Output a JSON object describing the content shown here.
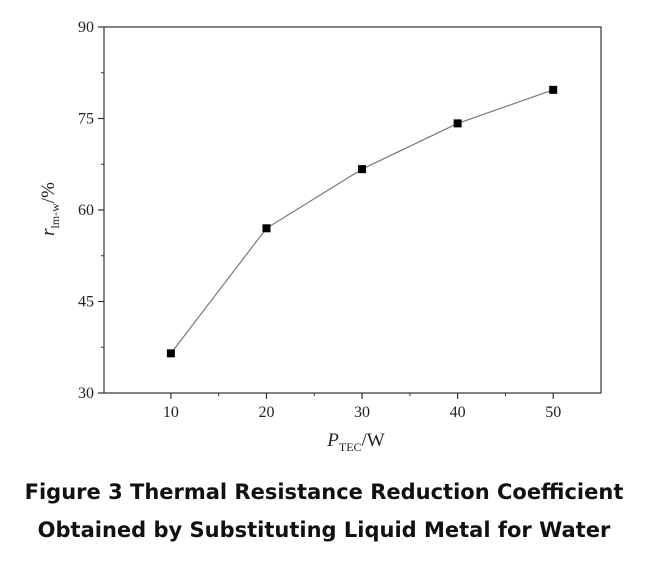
{
  "caption": {
    "line1": "Figure 3 Thermal Resistance Reduction Coefficient",
    "line2": "Obtained by Substituting Liquid Metal for Water"
  },
  "chart_data": {
    "type": "line",
    "x": [
      10,
      20,
      30,
      40,
      50
    ],
    "y": [
      36.5,
      57,
      66.7,
      74.2,
      79.7
    ],
    "x_ticks": [
      10,
      20,
      30,
      40,
      50
    ],
    "y_ticks": [
      30,
      45,
      60,
      75,
      90
    ],
    "xlim": [
      3,
      55
    ],
    "ylim": [
      30,
      90
    ],
    "xlabel": {
      "main": "P",
      "sub": "TEC",
      "suffix": "/W"
    },
    "ylabel": {
      "main": "r",
      "sub": "lm-w",
      "suffix": "/%"
    },
    "marker": "square",
    "grid": false,
    "line_color": "#777777",
    "marker_color": "#000000"
  }
}
